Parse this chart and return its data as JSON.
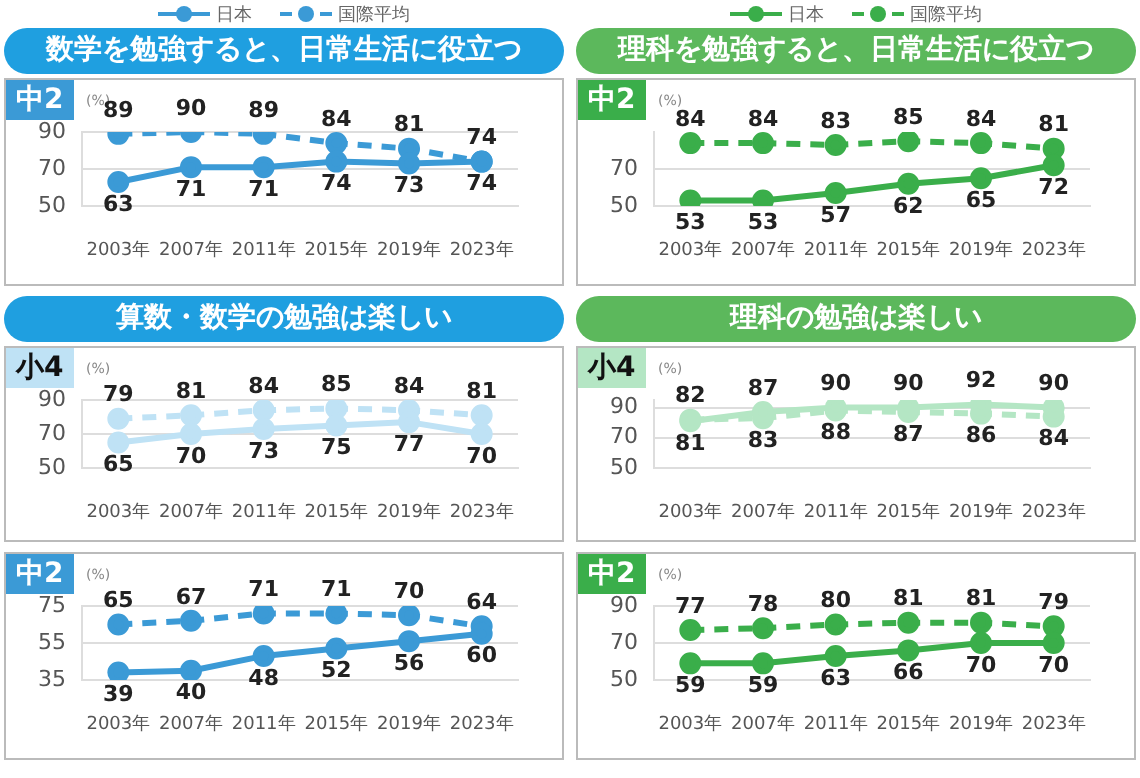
{
  "chart_data": [
    {
      "type": "line",
      "title": "数学を勉強すると、日常生活に役立つ",
      "subtitle": "中2",
      "ylabel": "(%)",
      "categories": [
        "2003年",
        "2007年",
        "2011年",
        "2015年",
        "2019年",
        "2023年"
      ],
      "series": [
        {
          "name": "日本",
          "color": "#3b9ad6",
          "line_style": "solid",
          "values": [
            63,
            71,
            71,
            74,
            73,
            74
          ]
        },
        {
          "name": "国際平均",
          "color": "#3b9ad6",
          "line_style": "dashed",
          "values": [
            89,
            90,
            89,
            84,
            81,
            74
          ]
        }
      ],
      "ylim": [
        50,
        90
      ],
      "yticks": [
        50,
        70,
        90
      ],
      "grid": "y",
      "legend": "top",
      "marker": "circle",
      "data_labels": true
    },
    {
      "type": "line",
      "title": "理科を勉強すると、日常生活に役立つ",
      "subtitle": "中2",
      "ylabel": "(%)",
      "categories": [
        "2003年",
        "2007年",
        "2011年",
        "2015年",
        "2019年",
        "2023年"
      ],
      "series": [
        {
          "name": "日本",
          "color": "#3aae4a",
          "line_style": "solid",
          "values": [
            53,
            53,
            57,
            62,
            65,
            72
          ]
        },
        {
          "name": "国際平均",
          "color": "#3aae4a",
          "line_style": "dashed",
          "values": [
            84,
            84,
            83,
            85,
            84,
            81
          ]
        }
      ],
      "ylim": [
        50,
        90
      ],
      "yticks": [
        50,
        70
      ],
      "grid": "y",
      "legend": "top",
      "marker": "circle",
      "data_labels": true
    },
    {
      "type": "line",
      "title": "算数・数学の勉強は楽しい",
      "subtitle": "小4",
      "ylabel": "(%)",
      "categories": [
        "2003年",
        "2007年",
        "2011年",
        "2015年",
        "2019年",
        "2023年"
      ],
      "series": [
        {
          "color": "#bfe2f5",
          "line_style": "solid",
          "values": [
            65,
            70,
            73,
            75,
            77,
            70
          ]
        },
        {
          "color": "#bfe2f5",
          "line_style": "dashed",
          "values": [
            79,
            81,
            84,
            85,
            84,
            81
          ]
        }
      ],
      "ylim": [
        50,
        90
      ],
      "yticks": [
        50,
        70,
        90
      ],
      "grid": "y",
      "marker": "circle",
      "data_labels": true
    },
    {
      "type": "line",
      "title": "理科の勉強は楽しい",
      "subtitle": "小4",
      "ylabel": "(%)",
      "categories": [
        "2003年",
        "2007年",
        "2011年",
        "2015年",
        "2019年",
        "2023年"
      ],
      "series": [
        {
          "color": "#b4e6c4",
          "line_style": "solid",
          "values": [
            81,
            87,
            90,
            90,
            92,
            90
          ]
        },
        {
          "color": "#b4e6c4",
          "line_style": "dashed",
          "values": [
            82,
            83,
            88,
            87,
            86,
            84
          ]
        }
      ],
      "ylim": [
        50,
        95
      ],
      "yticks": [
        50,
        70,
        90
      ],
      "grid": "y",
      "marker": "circle",
      "data_labels": true
    },
    {
      "type": "line",
      "subtitle": "中2",
      "ylabel": "(%)",
      "categories": [
        "2003年",
        "2007年",
        "2011年",
        "2015年",
        "2019年",
        "2023年"
      ],
      "series": [
        {
          "color": "#3b9ad6",
          "line_style": "solid",
          "values": [
            39,
            40,
            48,
            52,
            56,
            60
          ]
        },
        {
          "color": "#3b9ad6",
          "line_style": "dashed",
          "values": [
            65,
            67,
            71,
            71,
            70,
            64
          ]
        }
      ],
      "ylim": [
        35,
        75
      ],
      "yticks": [
        35,
        55,
        75
      ],
      "grid": "y",
      "marker": "circle",
      "data_labels": true
    },
    {
      "type": "line",
      "subtitle": "中2",
      "ylabel": "(%)",
      "categories": [
        "2003年",
        "2007年",
        "2011年",
        "2015年",
        "2019年",
        "2023年"
      ],
      "series": [
        {
          "color": "#3aae4a",
          "line_style": "solid",
          "values": [
            59,
            59,
            63,
            66,
            70,
            70
          ]
        },
        {
          "color": "#3aae4a",
          "line_style": "dashed",
          "values": [
            77,
            78,
            80,
            81,
            81,
            79
          ]
        }
      ],
      "ylim": [
        50,
        90
      ],
      "yticks": [
        50,
        70,
        90
      ],
      "grid": "y",
      "marker": "circle",
      "data_labels": true
    }
  ]
}
